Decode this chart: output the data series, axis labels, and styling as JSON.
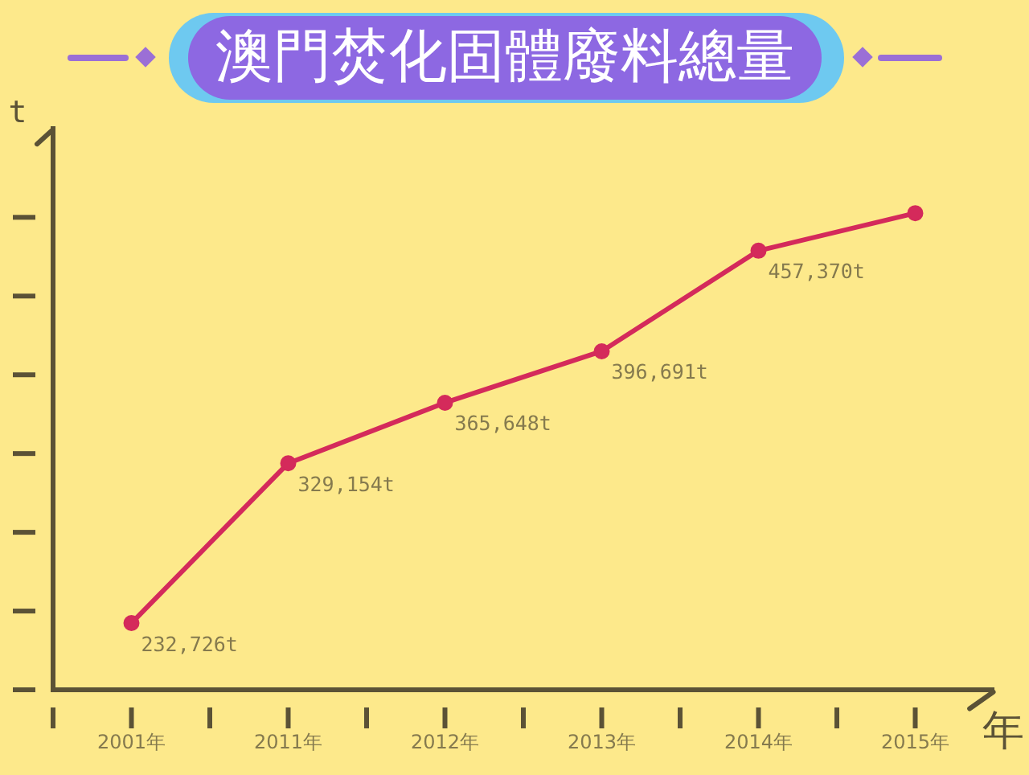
{
  "chart_data": {
    "type": "line",
    "title": "澳門焚化固體廢料總量",
    "xlabel": "年",
    "ylabel": "t",
    "categories": [
      "2001年",
      "2011年",
      "2012年",
      "2013年",
      "2014年",
      "2015年"
    ],
    "values": [
      232726,
      329154,
      365648,
      396691,
      457370,
      480000
    ],
    "color": "#d42a5b",
    "value_labels": [
      "232,726t",
      "329,154t",
      "365,648t",
      "396,691t",
      "457,370t",
      null
    ],
    "ylim": [
      192500,
      531000
    ],
    "yticks": [
      {
        "value": 192500,
        "label": null
      },
      {
        "value": 240000,
        "label": null
      },
      {
        "value": 287500,
        "label": null
      },
      {
        "value": 335000,
        "label": null
      },
      {
        "value": 382500,
        "label": null
      },
      {
        "value": 430000,
        "label": null
      },
      {
        "value": 477500,
        "label": null
      }
    ],
    "tick_labels": "x",
    "marker": "circle",
    "line_style": "solid"
  }
}
